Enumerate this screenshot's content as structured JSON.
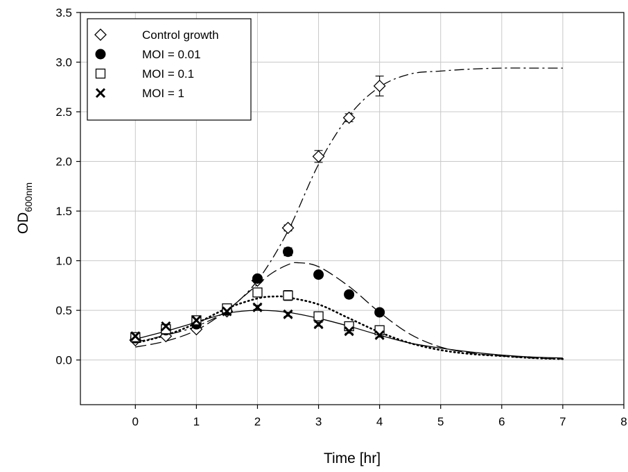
{
  "chart_data": {
    "type": "scatter",
    "title": "",
    "xlabel": "Time [hr]",
    "ylabel_main": "OD",
    "ylabel_sub": "600nm",
    "xlim": [
      -0.9,
      8
    ],
    "ylim": [
      -0.45,
      3.5
    ],
    "xticks": [
      0,
      1,
      2,
      3,
      4,
      5,
      6,
      7,
      8
    ],
    "yticks": [
      0.0,
      0.5,
      1.0,
      1.5,
      2.0,
      2.5,
      3.0,
      3.5
    ],
    "xtick_labels": [
      "0",
      "1",
      "2",
      "3",
      "4",
      "5",
      "6",
      "7",
      "8"
    ],
    "ytick_labels": [
      "0.0",
      "0.5",
      "1.0",
      "1.5",
      "2.0",
      "2.5",
      "3.0",
      "3.5"
    ],
    "grid": true,
    "legend_position": "top-left",
    "series": [
      {
        "name": "Control growth",
        "marker": "diamond-open",
        "x": [
          0,
          0.5,
          1,
          1.5,
          2,
          2.5,
          3,
          3.5,
          4
        ],
        "y": [
          0.2,
          0.24,
          0.31,
          0.49,
          0.8,
          1.33,
          2.05,
          2.44,
          2.76
        ],
        "err": [
          0.02,
          0.02,
          0.02,
          0.02,
          0.02,
          0.03,
          0.06,
          0.04,
          0.1
        ],
        "fit": {
          "style": "dash-dot",
          "x": [
            0,
            0.5,
            1,
            1.5,
            2,
            2.5,
            3,
            3.5,
            4,
            4.5,
            5,
            5.5,
            6,
            6.5,
            7
          ],
          "y": [
            0.18,
            0.25,
            0.34,
            0.5,
            0.8,
            1.3,
            1.97,
            2.46,
            2.75,
            2.88,
            2.91,
            2.93,
            2.94,
            2.94,
            2.94
          ]
        }
      },
      {
        "name": "MOI = 0.01",
        "marker": "circle-filled",
        "x": [
          0,
          0.5,
          1,
          1.5,
          2,
          2.5,
          3,
          3.5,
          4
        ],
        "y": [
          0.22,
          0.3,
          0.36,
          0.5,
          0.82,
          1.09,
          0.86,
          0.66,
          0.48
        ],
        "err": [
          0.02,
          0.02,
          0.02,
          0.02,
          0.02,
          0.04,
          0.03,
          0.02,
          0.02
        ],
        "fit": {
          "style": "long-dash",
          "x": [
            0,
            0.5,
            1,
            1.5,
            2,
            2.25,
            2.5,
            2.65,
            3,
            3.5,
            4,
            4.5,
            5,
            5.5,
            6,
            6.5,
            7
          ],
          "y": [
            0.13,
            0.19,
            0.3,
            0.5,
            0.76,
            0.88,
            0.96,
            0.98,
            0.94,
            0.74,
            0.48,
            0.26,
            0.13,
            0.07,
            0.04,
            0.02,
            0.01
          ]
        }
      },
      {
        "name": "MOI = 0.1",
        "marker": "square-open",
        "x": [
          0,
          0.5,
          1,
          1.5,
          2,
          2.5,
          3,
          3.5,
          4
        ],
        "y": [
          0.23,
          0.31,
          0.4,
          0.52,
          0.68,
          0.65,
          0.44,
          0.34,
          0.3
        ],
        "err": [
          0.02,
          0.02,
          0.02,
          0.02,
          0.03,
          0.05,
          0.03,
          0.02,
          0.02
        ],
        "fit": {
          "style": "dotted",
          "x": [
            0,
            0.5,
            1,
            1.5,
            2,
            2.3,
            2.5,
            3,
            3.5,
            4,
            4.5,
            5,
            5.5,
            6,
            6.5,
            7
          ],
          "y": [
            0.17,
            0.25,
            0.37,
            0.52,
            0.62,
            0.64,
            0.63,
            0.56,
            0.42,
            0.28,
            0.17,
            0.1,
            0.06,
            0.04,
            0.02,
            0.01
          ]
        }
      },
      {
        "name": "MOI = 1",
        "marker": "x",
        "x": [
          0,
          0.5,
          1,
          1.5,
          2,
          2.5,
          3,
          3.5,
          4
        ],
        "y": [
          0.24,
          0.34,
          0.4,
          0.49,
          0.53,
          0.46,
          0.36,
          0.29,
          0.25
        ],
        "err": [
          0.02,
          0.02,
          0.02,
          0.02,
          0.02,
          0.02,
          0.02,
          0.02,
          0.02
        ],
        "fit": {
          "style": "solid",
          "x": [
            0,
            0.5,
            1,
            1.5,
            2,
            2.5,
            3,
            3.5,
            4,
            4.5,
            5,
            5.5,
            6,
            6.5,
            7
          ],
          "y": [
            0.21,
            0.29,
            0.38,
            0.47,
            0.5,
            0.48,
            0.42,
            0.34,
            0.25,
            0.17,
            0.12,
            0.08,
            0.05,
            0.03,
            0.02
          ]
        }
      }
    ]
  }
}
